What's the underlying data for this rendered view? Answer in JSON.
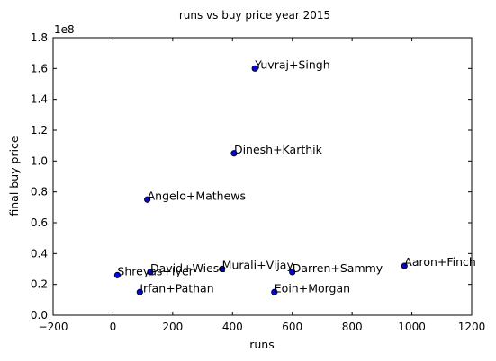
{
  "chart_data": {
    "type": "scatter",
    "title": "runs vs buy price year 2015",
    "xlabel": "runs",
    "ylabel": "final buy price",
    "y_scale_label": "1e8",
    "xlim": [
      -200,
      1200
    ],
    "ylim": [
      0.0,
      1.8
    ],
    "xticks": [
      -200,
      0,
      200,
      400,
      600,
      800,
      1000,
      1200
    ],
    "yticks": [
      0.0,
      0.2,
      0.4,
      0.6,
      0.8,
      1.0,
      1.2,
      1.4,
      1.6,
      1.8
    ],
    "xtick_labels": [
      "−200",
      "0",
      "200",
      "400",
      "600",
      "800",
      "1000",
      "1200"
    ],
    "ytick_labels": [
      "0.0",
      "0.2",
      "0.4",
      "0.6",
      "0.8",
      "1.0",
      "1.2",
      "1.4",
      "1.6",
      "1.8"
    ],
    "grid": false,
    "marker_color": "#0000ff",
    "points": [
      {
        "label": "Yuvraj+Singh",
        "x": 475,
        "y": 1.6
      },
      {
        "label": "Dinesh+Karthik",
        "x": 405,
        "y": 1.05
      },
      {
        "label": "Angelo+Mathews",
        "x": 115,
        "y": 0.75
      },
      {
        "label": "Aaron+Finch",
        "x": 975,
        "y": 0.32
      },
      {
        "label": "Murali+Vijay",
        "x": 365,
        "y": 0.3
      },
      {
        "label": "Darren+Sammy",
        "x": 600,
        "y": 0.28
      },
      {
        "label": "David+Wiese",
        "x": 125,
        "y": 0.28
      },
      {
        "label": "Shreyas+Iyer",
        "x": 15,
        "y": 0.26
      },
      {
        "label": "Irfan+Pathan",
        "x": 90,
        "y": 0.15
      },
      {
        "label": "Eoin+Morgan",
        "x": 540,
        "y": 0.15
      }
    ]
  }
}
